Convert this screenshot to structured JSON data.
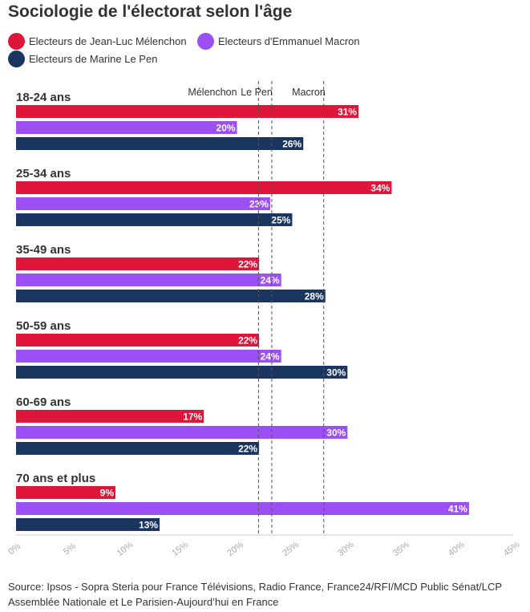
{
  "title": "Sociologie de l'électorat selon l'âge",
  "legend": [
    {
      "label": "Electeurs de Jean-Luc Mélenchon",
      "color": "#e0153a"
    },
    {
      "label": "Electeurs d'Emmanuel Macron",
      "color": "#9b4ff5"
    },
    {
      "label": "Electeurs de Marine Le Pen",
      "color": "#1a3560"
    }
  ],
  "source": "Source: Ipsos - Sopra Steria pour France Télévisions, Radio France, France24/RFI/MCD Public Sénat/LCP Assemblée Nationale et Le Parisien-Aujourd’hui en France",
  "chart_data": {
    "type": "bar",
    "orientation": "horizontal",
    "categories": [
      "18-24 ans",
      "25-34 ans",
      "35-49 ans",
      "50-59 ans",
      "60-69 ans",
      "70 ans et plus"
    ],
    "series": [
      {
        "name": "Electeurs de Jean-Luc Mélenchon",
        "color": "#e0153a",
        "values": [
          31,
          34,
          22,
          22,
          17,
          9
        ]
      },
      {
        "name": "Electeurs d'Emmanuel Macron",
        "color": "#9b4ff5",
        "values": [
          20,
          23,
          24,
          24,
          30,
          41
        ]
      },
      {
        "name": "Electeurs de Marine Le Pen",
        "color": "#1a3560",
        "values": [
          26,
          25,
          28,
          30,
          22,
          13
        ]
      }
    ],
    "data_label_suffix": "%",
    "xlim": [
      0,
      45
    ],
    "xticks": [
      "0%",
      "5%",
      "10%",
      "15%",
      "20%",
      "25%",
      "30%",
      "35%",
      "40%",
      "45%"
    ],
    "reference_lines": [
      {
        "label": "Mélenchon",
        "value": 21.95
      },
      {
        "label": "Le Pen",
        "value": 23.15
      },
      {
        "label": "Macron",
        "value": 27.85
      }
    ],
    "xlabel": "",
    "ylabel": "",
    "grid": false
  }
}
